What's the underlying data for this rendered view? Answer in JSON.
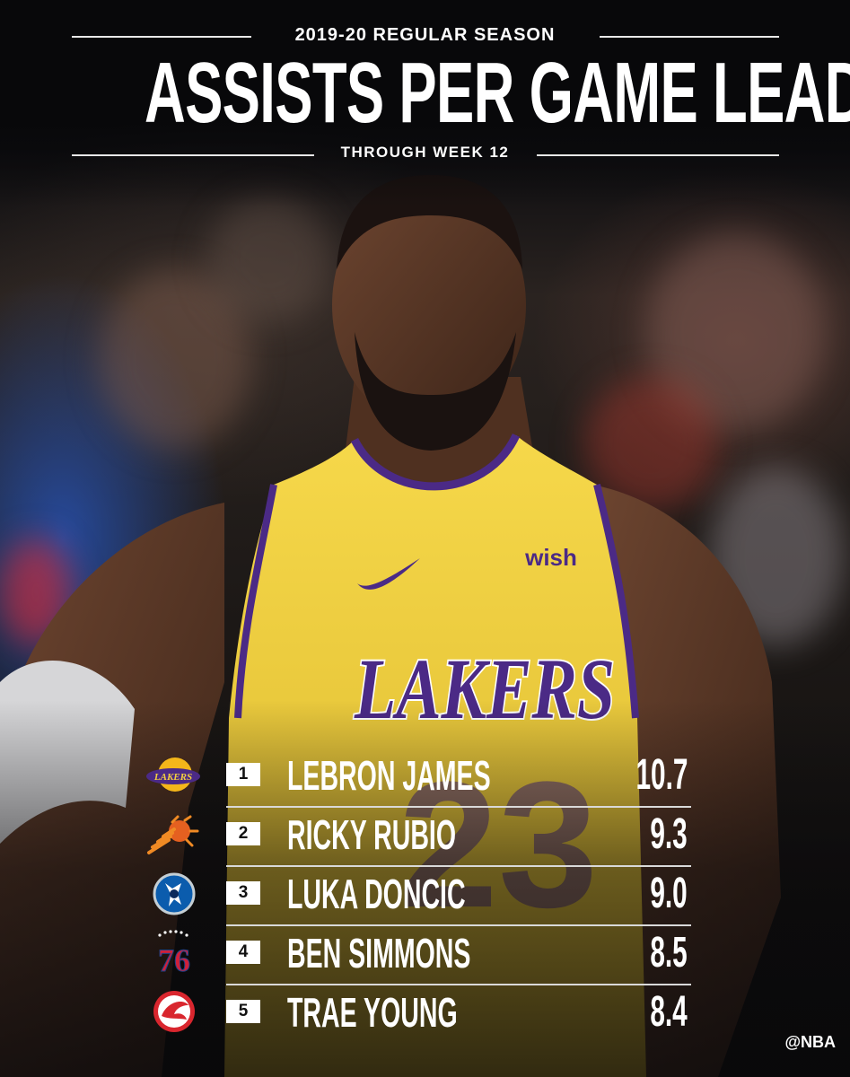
{
  "header": {
    "season": "2019-20 REGULAR SEASON",
    "title": "ASSISTS PER GAME LEADERS",
    "subtitle": "THROUGH WEEK 12"
  },
  "jersey": {
    "sponsor": "wish",
    "team_wordmark": "LAKERS",
    "number": "23"
  },
  "leaders": [
    {
      "rank": "1",
      "name": "LEBRON JAMES",
      "value": "10.7",
      "team_logo": "lakers-logo",
      "logo_text": "LAKERS"
    },
    {
      "rank": "2",
      "name": "RICKY RUBIO",
      "value": "9.3",
      "team_logo": "suns-logo"
    },
    {
      "rank": "3",
      "name": "LUKA DONCIC",
      "value": "9.0",
      "team_logo": "mavericks-logo"
    },
    {
      "rank": "4",
      "name": "BEN SIMMONS",
      "value": "8.5",
      "team_logo": "76ers-logo",
      "logo_text": "76"
    },
    {
      "rank": "5",
      "name": "TRAE YOUNG",
      "value": "8.4",
      "team_logo": "hawks-logo"
    }
  ],
  "footer": {
    "handle": "@NBA"
  },
  "colors": {
    "lakers_gold": "#f4d03f",
    "lakers_purple": "#4b2a86",
    "suns_orange": "#e56020",
    "mavs_blue": "#0b5cad",
    "sixers_red": "#d0203a",
    "hawks_red": "#d9262e"
  }
}
